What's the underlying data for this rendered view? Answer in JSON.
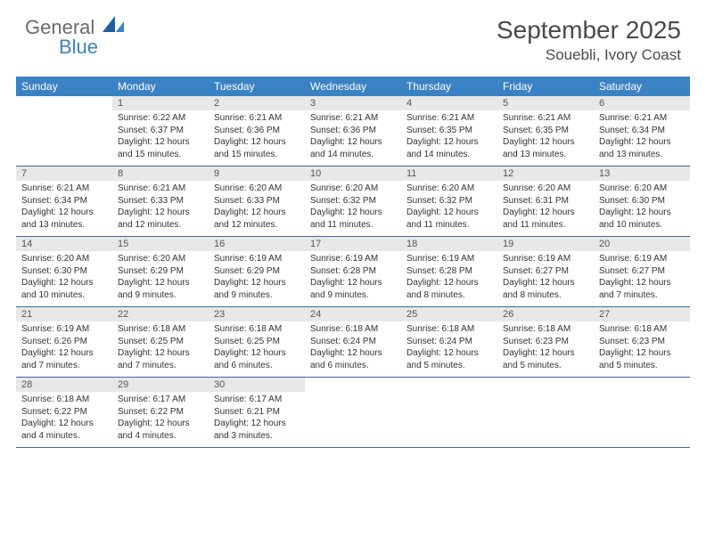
{
  "logo": {
    "text1": "General",
    "text2": "Blue",
    "color_gray": "#6b6b6b",
    "color_blue": "#3b82c4"
  },
  "header": {
    "month_title": "September 2025",
    "location": "Souebli, Ivory Coast"
  },
  "colors": {
    "header_bg": "#3b82c4",
    "header_text": "#ffffff",
    "daynum_bg": "#e8e8e8",
    "border": "#3b6a9a",
    "text": "#333333"
  },
  "day_headers": [
    "Sunday",
    "Monday",
    "Tuesday",
    "Wednesday",
    "Thursday",
    "Friday",
    "Saturday"
  ],
  "weeks": [
    [
      null,
      {
        "n": "1",
        "sr": "6:22 AM",
        "ss": "6:37 PM",
        "dl": "12 hours and 15 minutes."
      },
      {
        "n": "2",
        "sr": "6:21 AM",
        "ss": "6:36 PM",
        "dl": "12 hours and 15 minutes."
      },
      {
        "n": "3",
        "sr": "6:21 AM",
        "ss": "6:36 PM",
        "dl": "12 hours and 14 minutes."
      },
      {
        "n": "4",
        "sr": "6:21 AM",
        "ss": "6:35 PM",
        "dl": "12 hours and 14 minutes."
      },
      {
        "n": "5",
        "sr": "6:21 AM",
        "ss": "6:35 PM",
        "dl": "12 hours and 13 minutes."
      },
      {
        "n": "6",
        "sr": "6:21 AM",
        "ss": "6:34 PM",
        "dl": "12 hours and 13 minutes."
      }
    ],
    [
      {
        "n": "7",
        "sr": "6:21 AM",
        "ss": "6:34 PM",
        "dl": "12 hours and 13 minutes."
      },
      {
        "n": "8",
        "sr": "6:21 AM",
        "ss": "6:33 PM",
        "dl": "12 hours and 12 minutes."
      },
      {
        "n": "9",
        "sr": "6:20 AM",
        "ss": "6:33 PM",
        "dl": "12 hours and 12 minutes."
      },
      {
        "n": "10",
        "sr": "6:20 AM",
        "ss": "6:32 PM",
        "dl": "12 hours and 11 minutes."
      },
      {
        "n": "11",
        "sr": "6:20 AM",
        "ss": "6:32 PM",
        "dl": "12 hours and 11 minutes."
      },
      {
        "n": "12",
        "sr": "6:20 AM",
        "ss": "6:31 PM",
        "dl": "12 hours and 11 minutes."
      },
      {
        "n": "13",
        "sr": "6:20 AM",
        "ss": "6:30 PM",
        "dl": "12 hours and 10 minutes."
      }
    ],
    [
      {
        "n": "14",
        "sr": "6:20 AM",
        "ss": "6:30 PM",
        "dl": "12 hours and 10 minutes."
      },
      {
        "n": "15",
        "sr": "6:20 AM",
        "ss": "6:29 PM",
        "dl": "12 hours and 9 minutes."
      },
      {
        "n": "16",
        "sr": "6:19 AM",
        "ss": "6:29 PM",
        "dl": "12 hours and 9 minutes."
      },
      {
        "n": "17",
        "sr": "6:19 AM",
        "ss": "6:28 PM",
        "dl": "12 hours and 9 minutes."
      },
      {
        "n": "18",
        "sr": "6:19 AM",
        "ss": "6:28 PM",
        "dl": "12 hours and 8 minutes."
      },
      {
        "n": "19",
        "sr": "6:19 AM",
        "ss": "6:27 PM",
        "dl": "12 hours and 8 minutes."
      },
      {
        "n": "20",
        "sr": "6:19 AM",
        "ss": "6:27 PM",
        "dl": "12 hours and 7 minutes."
      }
    ],
    [
      {
        "n": "21",
        "sr": "6:19 AM",
        "ss": "6:26 PM",
        "dl": "12 hours and 7 minutes."
      },
      {
        "n": "22",
        "sr": "6:18 AM",
        "ss": "6:25 PM",
        "dl": "12 hours and 7 minutes."
      },
      {
        "n": "23",
        "sr": "6:18 AM",
        "ss": "6:25 PM",
        "dl": "12 hours and 6 minutes."
      },
      {
        "n": "24",
        "sr": "6:18 AM",
        "ss": "6:24 PM",
        "dl": "12 hours and 6 minutes."
      },
      {
        "n": "25",
        "sr": "6:18 AM",
        "ss": "6:24 PM",
        "dl": "12 hours and 5 minutes."
      },
      {
        "n": "26",
        "sr": "6:18 AM",
        "ss": "6:23 PM",
        "dl": "12 hours and 5 minutes."
      },
      {
        "n": "27",
        "sr": "6:18 AM",
        "ss": "6:23 PM",
        "dl": "12 hours and 5 minutes."
      }
    ],
    [
      {
        "n": "28",
        "sr": "6:18 AM",
        "ss": "6:22 PM",
        "dl": "12 hours and 4 minutes."
      },
      {
        "n": "29",
        "sr": "6:17 AM",
        "ss": "6:22 PM",
        "dl": "12 hours and 4 minutes."
      },
      {
        "n": "30",
        "sr": "6:17 AM",
        "ss": "6:21 PM",
        "dl": "12 hours and 3 minutes."
      },
      null,
      null,
      null,
      null
    ]
  ],
  "labels": {
    "sunrise": "Sunrise:",
    "sunset": "Sunset:",
    "daylight": "Daylight:"
  }
}
